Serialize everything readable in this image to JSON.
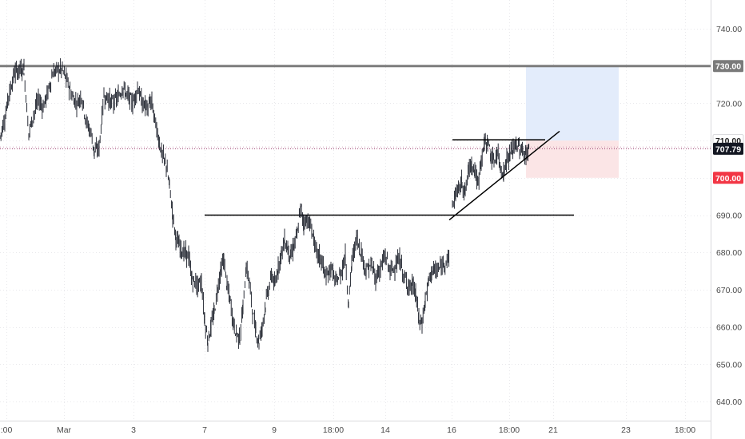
{
  "chart_data": {
    "type": "candlestick",
    "grid": true,
    "ylim": [
      633,
      753
    ],
    "x_ticks": [
      ":00",
      "Mar",
      "3",
      "7",
      "9",
      "18:00",
      "14",
      "16",
      "18:00",
      "21",
      "23",
      "18:00"
    ],
    "y_ticks": [
      640,
      650,
      660,
      670,
      680,
      690,
      700,
      710,
      720,
      730,
      740
    ],
    "price_path": [
      [
        0,
        711
      ],
      [
        6,
        716
      ],
      [
        12,
        723
      ],
      [
        18,
        728
      ],
      [
        24,
        729
      ],
      [
        30,
        729
      ],
      [
        36,
        712
      ],
      [
        42,
        717
      ],
      [
        48,
        721
      ],
      [
        54,
        719
      ],
      [
        60,
        723
      ],
      [
        66,
        728
      ],
      [
        72,
        729
      ],
      [
        78,
        729
      ],
      [
        84,
        726
      ],
      [
        90,
        722
      ],
      [
        96,
        720
      ],
      [
        102,
        722
      ],
      [
        108,
        715
      ],
      [
        114,
        712
      ],
      [
        118,
        707
      ],
      [
        124,
        708
      ],
      [
        130,
        722
      ],
      [
        136,
        721
      ],
      [
        142,
        720
      ],
      [
        148,
        722
      ],
      [
        154,
        724
      ],
      [
        160,
        722
      ],
      [
        166,
        720
      ],
      [
        172,
        724
      ],
      [
        178,
        720
      ],
      [
        184,
        719
      ],
      [
        190,
        720
      ],
      [
        196,
        713
      ],
      [
        202,
        707
      ],
      [
        208,
        703
      ],
      [
        212,
        698
      ],
      [
        216,
        690
      ],
      [
        220,
        684
      ],
      [
        224,
        682
      ],
      [
        230,
        680
      ],
      [
        236,
        679
      ],
      [
        240,
        673
      ],
      [
        246,
        671
      ],
      [
        252,
        672
      ],
      [
        256,
        662
      ],
      [
        260,
        656
      ],
      [
        264,
        660
      ],
      [
        268,
        664
      ],
      [
        272,
        670
      ],
      [
        276,
        675
      ],
      [
        280,
        678
      ],
      [
        284,
        671
      ],
      [
        288,
        667
      ],
      [
        292,
        661
      ],
      [
        296,
        658
      ],
      [
        300,
        657
      ],
      [
        304,
        665
      ],
      [
        308,
        676
      ],
      [
        312,
        672
      ],
      [
        316,
        664
      ],
      [
        320,
        659
      ],
      [
        324,
        656
      ],
      [
        328,
        660
      ],
      [
        332,
        666
      ],
      [
        336,
        670
      ],
      [
        340,
        674
      ],
      [
        344,
        671
      ],
      [
        348,
        676
      ],
      [
        352,
        680
      ],
      [
        356,
        683
      ],
      [
        360,
        681
      ],
      [
        364,
        679
      ],
      [
        368,
        682
      ],
      [
        372,
        685
      ],
      [
        376,
        692
      ],
      [
        380,
        688
      ],
      [
        384,
        689
      ],
      [
        390,
        686
      ],
      [
        396,
        680
      ],
      [
        402,
        678
      ],
      [
        408,
        673
      ],
      [
        414,
        676
      ],
      [
        420,
        672
      ],
      [
        426,
        674
      ],
      [
        432,
        679
      ],
      [
        436,
        666
      ],
      [
        440,
        677
      ],
      [
        446,
        684
      ],
      [
        452,
        680
      ],
      [
        458,
        675
      ],
      [
        464,
        677
      ],
      [
        470,
        673
      ],
      [
        476,
        676
      ],
      [
        482,
        679
      ],
      [
        488,
        675
      ],
      [
        494,
        676
      ],
      [
        500,
        678
      ],
      [
        506,
        673
      ],
      [
        512,
        671
      ],
      [
        516,
        671
      ],
      [
        520,
        669
      ],
      [
        524,
        662
      ],
      [
        528,
        661
      ],
      [
        532,
        667
      ],
      [
        536,
        672
      ],
      [
        540,
        675
      ],
      [
        546,
        675
      ],
      [
        552,
        676
      ],
      [
        558,
        678
      ],
      [
        562,
        679
      ]
    ],
    "price_path_2": [
      [
        566,
        692
      ],
      [
        570,
        696
      ],
      [
        574,
        697
      ],
      [
        578,
        699
      ],
      [
        582,
        696
      ],
      [
        586,
        702
      ],
      [
        590,
        704
      ],
      [
        594,
        702
      ],
      [
        598,
        698
      ],
      [
        602,
        705
      ],
      [
        606,
        709
      ],
      [
        610,
        710
      ],
      [
        614,
        706
      ],
      [
        618,
        704
      ],
      [
        622,
        707
      ],
      [
        626,
        703
      ],
      [
        630,
        701
      ],
      [
        634,
        705
      ],
      [
        638,
        706
      ],
      [
        642,
        708
      ],
      [
        646,
        709
      ],
      [
        650,
        708
      ],
      [
        654,
        707
      ],
      [
        658,
        706
      ],
      [
        662,
        708
      ]
    ],
    "levels": [
      {
        "price": 730,
        "style": "resistance"
      },
      {
        "price": 690,
        "style": "support"
      }
    ],
    "trend_lines": [
      {
        "from": [
          562,
          688.7
        ],
        "to": [
          700,
          712.5
        ]
      },
      {
        "from": [
          566,
          710.2
        ],
        "to": [
          682,
          710.2
        ]
      }
    ],
    "position": {
      "entry": 710,
      "target": 730,
      "stop": 700,
      "x_start": 658,
      "x_end": 774
    },
    "last_price": 707.79,
    "price_badges": [
      {
        "text": "730.00",
        "bg": "#7a7a7a",
        "fg": "#ffffff",
        "price": 730
      },
      {
        "text": "710.00",
        "bg": "#ffffff",
        "fg": "#222222",
        "price": 710
      },
      {
        "text": "707.79",
        "bg": "#131722",
        "fg": "#ffffff",
        "price": 707.79
      },
      {
        "text": "700.00",
        "bg": "#f23645",
        "fg": "#ffffff",
        "price": 700
      }
    ]
  },
  "colors": {
    "grid": "#e9e9ec",
    "candle": "#131722",
    "level": "#7d7d7d",
    "line": "#000000",
    "target_zone": "#e3ecfb",
    "stop_zone": "#fbe5e6",
    "last_price_line": "#9c3f6f"
  }
}
